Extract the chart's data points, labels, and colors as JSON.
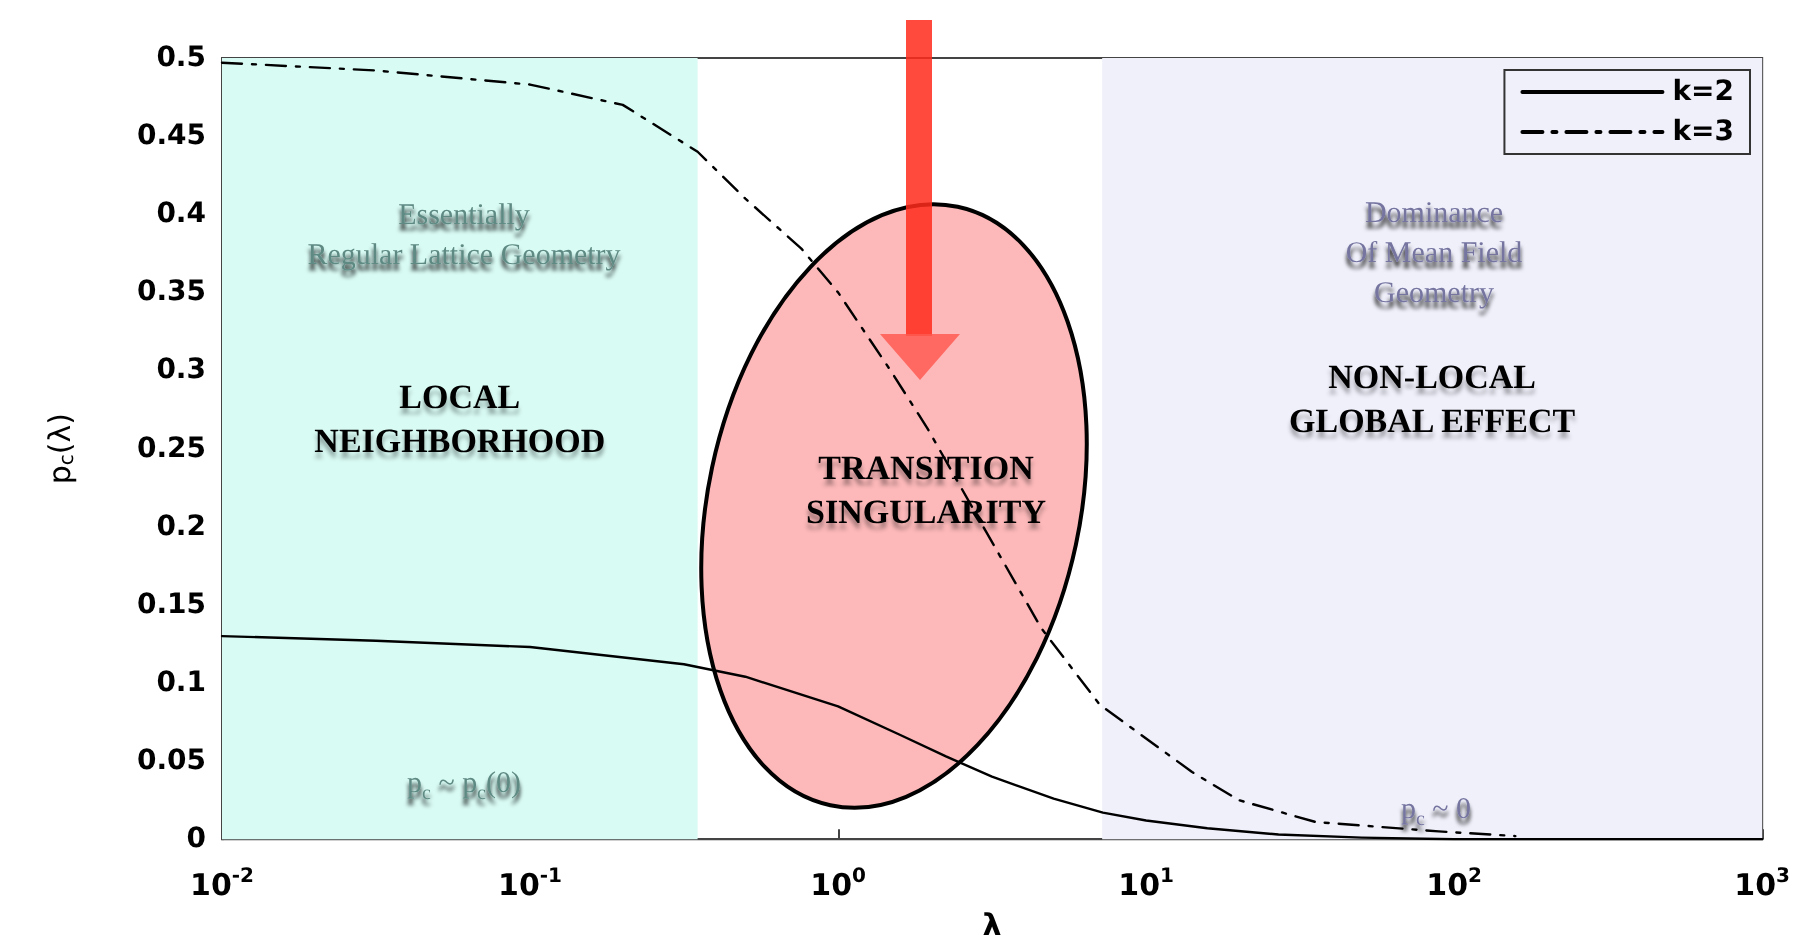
{
  "chart_data": {
    "type": "line",
    "xlabel": "λ",
    "ylabel": "p$_{c}$(λ)",
    "log": "x",
    "xlim": [
      0.01,
      1000
    ],
    "xticks": [
      {
        "value": 0.01,
        "label": "10$^{-2}$"
      },
      {
        "value": 0.1,
        "label": "10$^{-1}$"
      },
      {
        "value": 1,
        "label": "10$^{0}$"
      },
      {
        "value": 10,
        "label": "10$^{1}$"
      },
      {
        "value": 100,
        "label": "10$^{2}$"
      },
      {
        "value": 1000,
        "label": "10$^{3}$"
      }
    ],
    "ylim": [
      0,
      0.5
    ],
    "yticks": [
      0,
      0.05,
      0.1,
      0.15,
      0.2,
      0.25,
      0.3,
      0.35,
      0.4,
      0.45,
      0.5
    ],
    "grid": false,
    "legend": "top right",
    "marker": "none",
    "series": [
      {
        "name": "k=2",
        "color": "#000000",
        "line_style": "solid",
        "x": [
          0.01,
          0.0316,
          0.1,
          0.316,
          0.5,
          1,
          1.58,
          2.24,
          3.16,
          5.01,
          7.24,
          10,
          15.8,
          26.9,
          50.1,
          100,
          1000
        ],
        "values": [
          0.13,
          0.127,
          0.123,
          0.112,
          0.104,
          0.085,
          0.067,
          0.053,
          0.04,
          0.026,
          0.017,
          0.012,
          0.007,
          0.003,
          0.001,
          0,
          0
        ]
      },
      {
        "name": "k=3",
        "color": "#000000",
        "line_style": "dashdot",
        "x": [
          0.01,
          0.0316,
          0.1,
          0.2,
          0.35,
          0.5,
          0.76,
          1,
          1.48,
          1.95,
          3.02,
          4.57,
          7.08,
          14.1,
          20,
          35.5,
          89.1,
          158
        ],
        "values": [
          0.497,
          0.492,
          0.483,
          0.47,
          0.44,
          0.41,
          0.378,
          0.35,
          0.3,
          0.263,
          0.197,
          0.135,
          0.086,
          0.043,
          0.025,
          0.011,
          0.005,
          0.002
        ]
      }
    ],
    "bands": [
      {
        "axis": "x",
        "from": 0.01,
        "to": 0.35,
        "color": "#d8fbf4",
        "label": "LOCAL\nNEIGHBORHOOD"
      },
      {
        "axis": "x",
        "from": 7.2,
        "to": 1000,
        "color": "#f0f0fb",
        "label": "NON-LOCAL\nGLOBAL EFFECT"
      }
    ],
    "annotations": [
      "Essentially\nRegular Lattice Geometry",
      "Dominance\nOf Mean Field\nGeometry",
      "p$_{c}$ ~ p$_{c}$(0)",
      "p$_{c}$ ~ 0",
      "TRANSITION\nSINGULARITY"
    ]
  }
}
